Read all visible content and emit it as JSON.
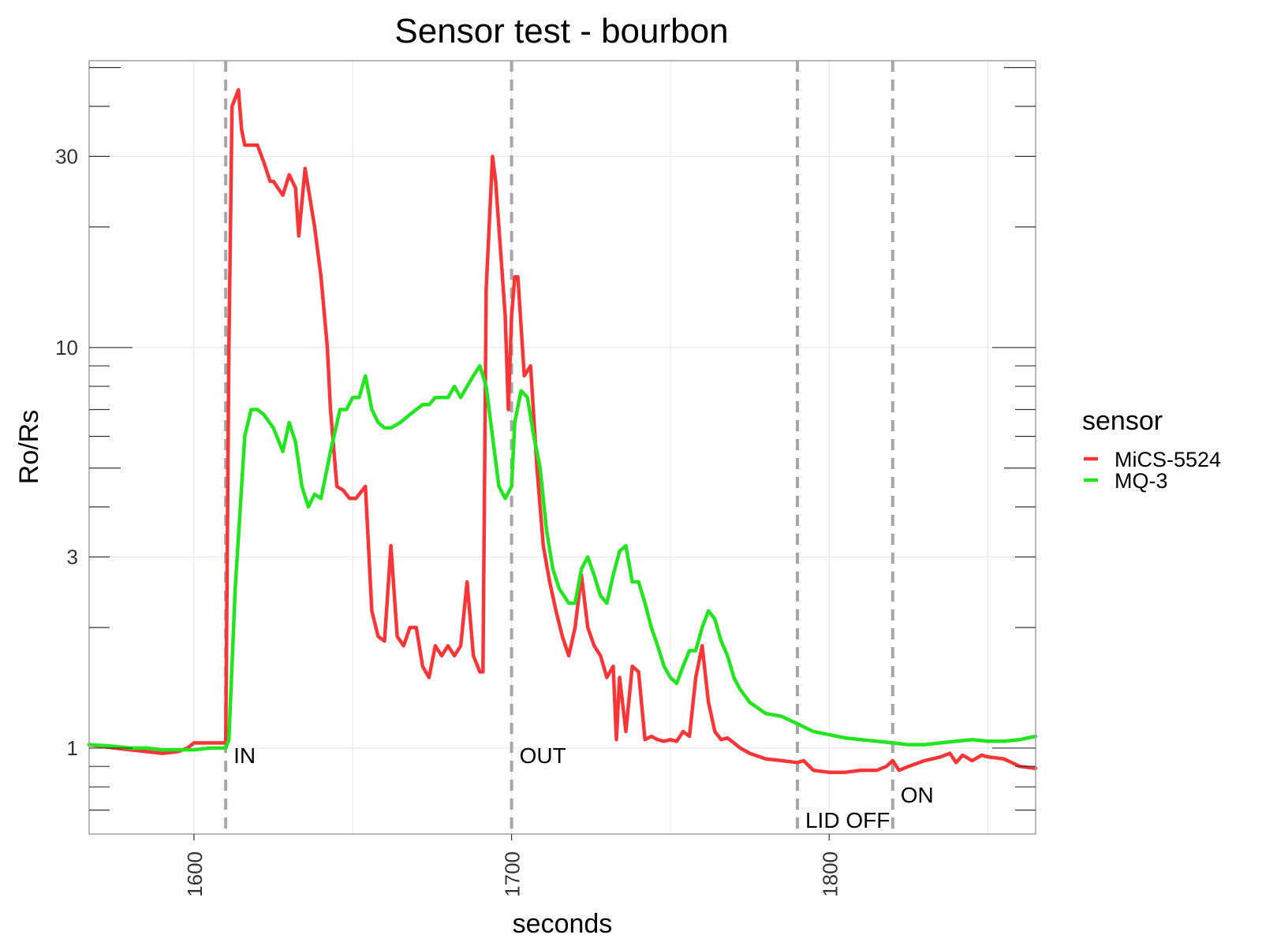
{
  "chart_data": {
    "type": "line",
    "title": "Sensor test - bourbon",
    "xlabel": "seconds",
    "ylabel": "Ro/Rs",
    "xlim": [
      1567,
      1865
    ],
    "ylim": [
      0.61,
      52
    ],
    "y_scale": "log",
    "grid": true,
    "x_ticks": [
      1600,
      1700,
      1800
    ],
    "x_tick_labels": [
      "1600",
      "1700",
      "1800"
    ],
    "y_ticks": [
      1,
      3,
      10,
      30
    ],
    "y_tick_labels": [
      "1",
      "3",
      "10",
      "30"
    ],
    "legend": {
      "title": "sensor",
      "position": "right"
    },
    "vlines": [
      {
        "x": 1610,
        "label": "IN"
      },
      {
        "x": 1700,
        "label": "OUT"
      },
      {
        "x": 1790,
        "label": "LID OFF"
      },
      {
        "x": 1820,
        "label": "ON"
      }
    ],
    "series": [
      {
        "name": "MiCS-5524",
        "color": "#f93537",
        "x": [
          1567,
          1575,
          1580,
          1585,
          1590,
          1595,
          1598,
          1600,
          1605,
          1610,
          1611,
          1612,
          1614,
          1615,
          1616,
          1618,
          1620,
          1622,
          1624,
          1625,
          1628,
          1630,
          1632,
          1633,
          1635,
          1638,
          1640,
          1642,
          1643,
          1645,
          1647,
          1649,
          1651,
          1653,
          1654,
          1656,
          1658,
          1660,
          1662,
          1664,
          1666,
          1668,
          1670,
          1672,
          1674,
          1676,
          1678,
          1680,
          1682,
          1684,
          1686,
          1688,
          1690,
          1691,
          1692,
          1694,
          1695,
          1696,
          1698,
          1699,
          1700,
          1701,
          1702,
          1704,
          1706,
          1708,
          1710,
          1712,
          1714,
          1716,
          1718,
          1720,
          1722,
          1724,
          1726,
          1728,
          1730,
          1732,
          1733,
          1734,
          1736,
          1738,
          1740,
          1742,
          1744,
          1746,
          1748,
          1750,
          1752,
          1754,
          1756,
          1758,
          1760,
          1762,
          1764,
          1766,
          1768,
          1770,
          1772,
          1775,
          1780,
          1785,
          1790,
          1792,
          1795,
          1800,
          1805,
          1810,
          1815,
          1818,
          1820,
          1822,
          1825,
          1830,
          1835,
          1838,
          1840,
          1842,
          1845,
          1848,
          1850,
          1855,
          1860,
          1865
        ],
        "y": [
          1.02,
          1.0,
          0.99,
          0.98,
          0.97,
          0.98,
          1.0,
          1.03,
          1.03,
          1.03,
          10,
          40,
          44,
          35,
          32,
          32,
          32,
          29,
          26,
          26,
          24,
          27,
          25,
          19,
          28,
          20,
          15,
          10,
          7.0,
          4.5,
          4.4,
          4.2,
          4.2,
          4.4,
          4.5,
          2.2,
          1.9,
          1.85,
          3.2,
          1.9,
          1.8,
          2.0,
          2.0,
          1.6,
          1.5,
          1.8,
          1.7,
          1.8,
          1.7,
          1.8,
          2.6,
          1.7,
          1.55,
          1.55,
          14,
          30,
          26,
          20,
          12,
          7.0,
          12,
          15,
          15,
          8.5,
          9.0,
          5.0,
          3.2,
          2.6,
          2.2,
          1.9,
          1.7,
          2.0,
          2.7,
          2.0,
          1.8,
          1.7,
          1.5,
          1.6,
          1.05,
          1.5,
          1.1,
          1.6,
          1.55,
          1.05,
          1.07,
          1.05,
          1.04,
          1.05,
          1.04,
          1.1,
          1.07,
          1.5,
          1.8,
          1.3,
          1.1,
          1.05,
          1.06,
          1.03,
          1.0,
          0.97,
          0.94,
          0.93,
          0.92,
          0.93,
          0.88,
          0.87,
          0.87,
          0.88,
          0.88,
          0.9,
          0.93,
          0.88,
          0.9,
          0.93,
          0.95,
          0.97,
          0.92,
          0.96,
          0.93,
          0.96,
          0.95,
          0.94,
          0.9,
          0.89
        ]
      },
      {
        "name": "MQ-3",
        "color": "#22e51f",
        "x": [
          1567,
          1575,
          1580,
          1585,
          1590,
          1595,
          1600,
          1605,
          1610,
          1611,
          1613,
          1616,
          1618,
          1620,
          1622,
          1625,
          1628,
          1630,
          1632,
          1634,
          1636,
          1638,
          1640,
          1643,
          1646,
          1648,
          1650,
          1652,
          1654,
          1656,
          1658,
          1660,
          1662,
          1665,
          1668,
          1670,
          1672,
          1674,
          1676,
          1678,
          1680,
          1682,
          1684,
          1686,
          1688,
          1690,
          1692,
          1694,
          1696,
          1698,
          1700,
          1701,
          1703,
          1705,
          1707,
          1709,
          1711,
          1713,
          1715,
          1718,
          1720,
          1722,
          1724,
          1726,
          1728,
          1730,
          1732,
          1734,
          1736,
          1738,
          1740,
          1742,
          1744,
          1746,
          1748,
          1750,
          1752,
          1754,
          1756,
          1758,
          1760,
          1762,
          1764,
          1766,
          1768,
          1770,
          1772,
          1775,
          1780,
          1785,
          1790,
          1792,
          1795,
          1800,
          1805,
          1810,
          1815,
          1820,
          1825,
          1830,
          1835,
          1840,
          1845,
          1850,
          1855,
          1860,
          1865
        ],
        "y": [
          1.02,
          1.01,
          1.0,
          1.0,
          0.99,
          0.99,
          0.99,
          1.0,
          1.0,
          1.05,
          2.5,
          6.0,
          7.0,
          7.0,
          6.8,
          6.3,
          5.5,
          6.5,
          5.8,
          4.5,
          4.0,
          4.3,
          4.2,
          5.5,
          7.0,
          7.0,
          7.5,
          7.5,
          8.5,
          7.0,
          6.5,
          6.3,
          6.3,
          6.5,
          6.8,
          7.0,
          7.2,
          7.2,
          7.5,
          7.5,
          7.5,
          8.0,
          7.5,
          8.0,
          8.5,
          9.0,
          8.0,
          6.0,
          4.5,
          4.2,
          4.5,
          6.5,
          7.8,
          7.5,
          6.0,
          5.0,
          3.5,
          2.8,
          2.5,
          2.3,
          2.3,
          2.8,
          3.0,
          2.7,
          2.4,
          2.3,
          2.7,
          3.1,
          3.2,
          2.6,
          2.6,
          2.3,
          2.0,
          1.8,
          1.6,
          1.5,
          1.45,
          1.6,
          1.75,
          1.75,
          2.0,
          2.2,
          2.1,
          1.85,
          1.7,
          1.5,
          1.4,
          1.3,
          1.22,
          1.2,
          1.15,
          1.13,
          1.1,
          1.08,
          1.06,
          1.05,
          1.04,
          1.03,
          1.02,
          1.02,
          1.03,
          1.04,
          1.05,
          1.04,
          1.04,
          1.05,
          1.07
        ]
      }
    ]
  }
}
